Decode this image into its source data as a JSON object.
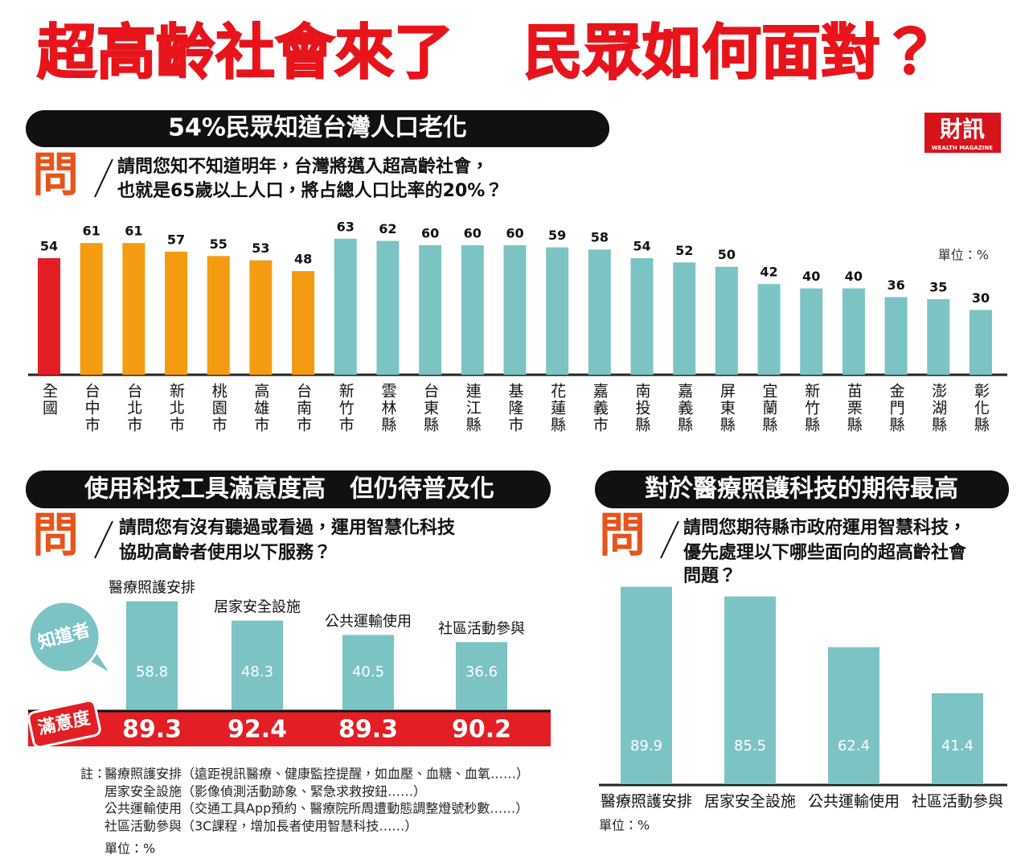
{
  "title": {
    "left": "超高齡社會來了",
    "right": "民眾如何面對？"
  },
  "logo": {
    "main": "財訊",
    "sub": "WEALTH MAGAZINE"
  },
  "chart_data": [
    {
      "type": "bar",
      "title": "54%民眾知道台灣人口老化",
      "question": {
        "mark": "問",
        "lines": [
          "請問您知不知道明年，台灣將邁入超高齡社會，",
          "也就是65歲以上人口，將占總人口比率的20%？"
        ]
      },
      "unit": "單位：%",
      "categories": [
        "全國",
        "台中市",
        "台北市",
        "新北市",
        "桃園市",
        "高雄市",
        "台南市",
        "新竹市",
        "雲林縣",
        "台東縣",
        "連江縣",
        "基隆市",
        "花蓮縣",
        "嘉義市",
        "南投縣",
        "嘉義縣",
        "屏東縣",
        "宜蘭縣",
        "新竹縣",
        "苗栗縣",
        "金門縣",
        "澎湖縣",
        "彰化縣"
      ],
      "values": [
        54,
        61,
        61,
        57,
        55,
        53,
        48,
        63,
        62,
        60,
        60,
        60,
        59,
        58,
        54,
        52,
        50,
        42,
        40,
        40,
        36,
        35,
        30
      ],
      "colors": [
        "#e31e24",
        "#f39c12",
        "#f39c12",
        "#f39c12",
        "#f39c12",
        "#f39c12",
        "#f39c12",
        "#7cc3c4",
        "#7cc3c4",
        "#7cc3c4",
        "#7cc3c4",
        "#7cc3c4",
        "#7cc3c4",
        "#7cc3c4",
        "#7cc3c4",
        "#7cc3c4",
        "#7cc3c4",
        "#7cc3c4",
        "#7cc3c4",
        "#7cc3c4",
        "#7cc3c4",
        "#7cc3c4",
        "#7cc3c4"
      ],
      "ylim": [
        0,
        70
      ]
    },
    {
      "type": "bar",
      "title": "使用科技工具滿意度高　但仍待普及化",
      "question": {
        "mark": "問",
        "lines": [
          "請問您有沒有聽過或看過，運用智慧化科技",
          "協助高齡者使用以下服務？"
        ]
      },
      "categories": [
        "醫療照護安排",
        "居家安全設施",
        "公共運輸使用",
        "社區活動參與"
      ],
      "series": [
        {
          "name": "知道者",
          "color": "#7cc3c4",
          "values": [
            58.8,
            48.3,
            40.5,
            36.6
          ]
        },
        {
          "name": "滿意度",
          "color": "#e31e24",
          "values": [
            89.3,
            92.4,
            89.3,
            90.2
          ]
        }
      ],
      "ylim": [
        0,
        70
      ],
      "notes": {
        "label": "註：",
        "items": [
          "醫療照護安排（遠距視訊醫療、健康監控提醒，如血壓、血糖、血氧……）",
          "居家安全設施（影像偵測活動跡象、緊急求救按鈕……）",
          "公共運輸使用（交通工具App預約、醫療院所周遭動態調整燈號秒數……）",
          "社區活動參與（3C課程，增加長者使用智慧科技……）"
        ]
      },
      "unit": "單位：%"
    },
    {
      "type": "bar",
      "title": "對於醫療照護科技的期待最高",
      "question": {
        "mark": "問",
        "lines": [
          "請問您期待縣市政府運用智慧科技，",
          "優先處理以下哪些面向的超高齡社會",
          "問題？"
        ]
      },
      "categories": [
        "醫療照護安排",
        "居家安全設施",
        "公共運輸使用",
        "社區活動參與"
      ],
      "values": [
        89.9,
        85.5,
        62.4,
        41.4
      ],
      "color": "#7cc3c4",
      "ylim": [
        0,
        100
      ],
      "unit": "單位：%"
    }
  ]
}
